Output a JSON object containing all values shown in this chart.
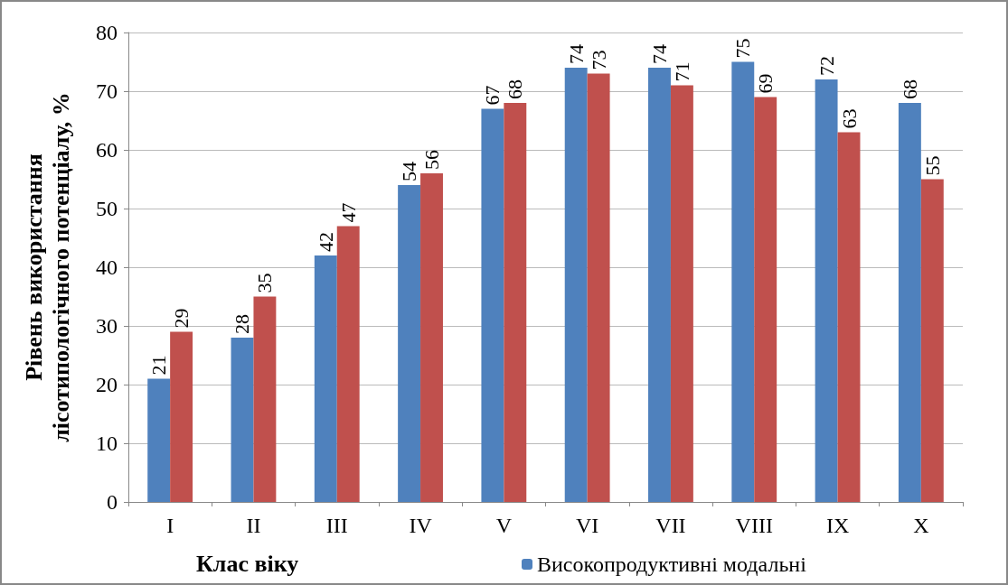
{
  "chart_data": {
    "type": "bar",
    "xlabel": "Клас віку",
    "ylabel": "Рівень використання\nлісотипологічного потенціалу, %",
    "categories": [
      "I",
      "II",
      "III",
      "IV",
      "V",
      "VI",
      "VII",
      "VIII",
      "IX",
      "X"
    ],
    "series": [
      {
        "name": "Високопродуктивні модальні",
        "color": "#4f81bd",
        "values": [
          21,
          28,
          42,
          54,
          67,
          74,
          74,
          75,
          72,
          68
        ]
      },
      {
        "color": "#c0504d",
        "values": [
          29,
          35,
          47,
          56,
          68,
          73,
          71,
          69,
          63,
          55
        ]
      }
    ],
    "ylim": [
      0,
      80
    ],
    "yticks": [
      0,
      10,
      20,
      30,
      40,
      50,
      60,
      70,
      80
    ],
    "grid": "y",
    "legend": "bottom",
    "data_labels": true
  }
}
